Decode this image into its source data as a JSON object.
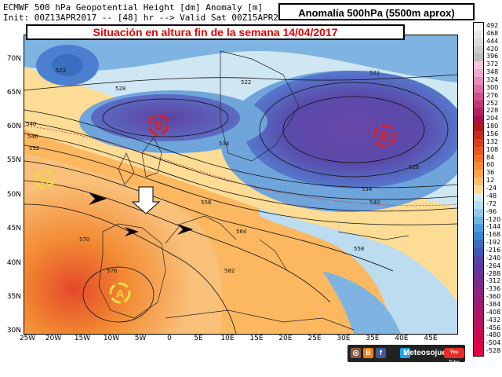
{
  "header": {
    "line1": "ECMWF 500 hPa Geopotential Height [dm] Anomaly [m]",
    "line2": "Init: 00Z13APR2017 -- [48] hr --> Valid Sat 00Z15APR2"
  },
  "anomaly_title": "Anomalía 500hPa (5500m aprox)",
  "map_title": "Situación en altura fin de la semana 14/04/2017",
  "latitude_labels": [
    "70N",
    "65N",
    "60N",
    "55N",
    "50N",
    "45N",
    "40N",
    "35N",
    "30N"
  ],
  "longitude_labels": [
    "25W",
    "20W",
    "15W",
    "10W",
    "5W",
    "0",
    "5E",
    "10E",
    "15E",
    "20E",
    "25E",
    "30E",
    "35E",
    "40E",
    "45E"
  ],
  "legend": {
    "labels": [
      "492",
      "468",
      "444",
      "420",
      "396",
      "372",
      "348",
      "324",
      "300",
      "276",
      "252",
      "228",
      "204",
      "180",
      "156",
      "132",
      "108",
      "84",
      "60",
      "36",
      "12",
      "-24",
      "-48",
      "-72",
      "-96",
      "-120",
      "-144",
      "-168",
      "-192",
      "-216",
      "-240",
      "-264",
      "-288",
      "-312",
      "-336",
      "-360",
      "-384",
      "-408",
      "-432",
      "-456",
      "-480",
      "-504",
      "-528"
    ],
    "colors": [
      "#f5f5f5",
      "#e8e8e8",
      "#dadada",
      "#cccccc",
      "#bdbdbd",
      "#f4c6dc",
      "#eeaad0",
      "#e68cbc",
      "#dc6ea6",
      "#cf4f8e",
      "#c33677",
      "#b5205f",
      "#a81049",
      "#b01818",
      "#c62a1a",
      "#da3e1a",
      "#e8571e",
      "#f07025",
      "#f68a32",
      "#faa448",
      "#fcbf68",
      "#fddc95",
      "#d6ecf7",
      "#b4dcf2",
      "#90c9eb",
      "#6bb4e3",
      "#4b9ed9",
      "#3a86cc",
      "#3a6ebf",
      "#4459b2",
      "#5146a6",
      "#5e3b9c",
      "#6b3393",
      "#792c8b",
      "#862584",
      "#931f7c",
      "#a01a74",
      "#ac156c",
      "#b81064",
      "#c40b5c",
      "#cf0754",
      "#da034c",
      "#e40045"
    ]
  },
  "map": {
    "systems": [
      {
        "type": "low",
        "letter": "B",
        "color": "#e02020"
      },
      {
        "type": "low",
        "letter": "B",
        "color": "#e02020"
      },
      {
        "type": "high",
        "letter": "A",
        "color": "#e8e040"
      },
      {
        "type": "high",
        "letter": "A",
        "color": "#e8e040"
      }
    ],
    "isohypse_labels": [
      "522",
      "540",
      "546",
      "552",
      "558",
      "564",
      "570",
      "576",
      "528",
      "534",
      "558",
      "582",
      "522",
      "522",
      "528",
      "534",
      "540"
    ],
    "colors": {
      "deep_low": "#5a3e9e",
      "low": "#4d7fd1",
      "neutral": "#cfe6f3",
      "high": "#f28a32",
      "very_high": "#e4482a"
    }
  },
  "branding": {
    "text": "Meteosojuela",
    "icons": [
      "instagram-icon",
      "blogger-icon",
      "facebook-icon",
      "twitter-icon"
    ],
    "youtube_label": "You Tube"
  }
}
